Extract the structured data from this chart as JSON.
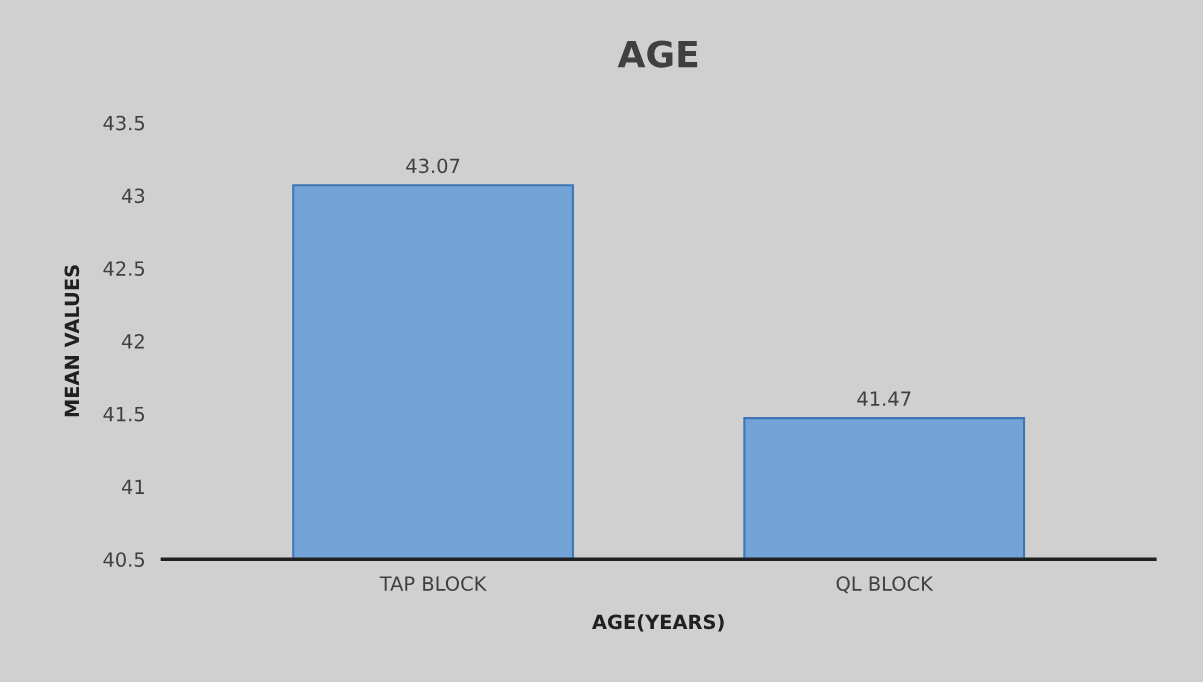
{
  "chart_data": {
    "type": "bar",
    "title": "AGE",
    "xlabel": "AGE(YEARS)",
    "ylabel": "MEAN VALUES",
    "categories": [
      "TAP BLOCK",
      "QL BLOCK"
    ],
    "values": [
      43.07,
      41.47
    ],
    "color": "#6a9fd8",
    "ylim": [
      40.5,
      43.5
    ],
    "yticks": [
      40.5,
      41,
      41.5,
      42,
      42.5,
      43,
      43.5
    ],
    "data_labels": true
  }
}
